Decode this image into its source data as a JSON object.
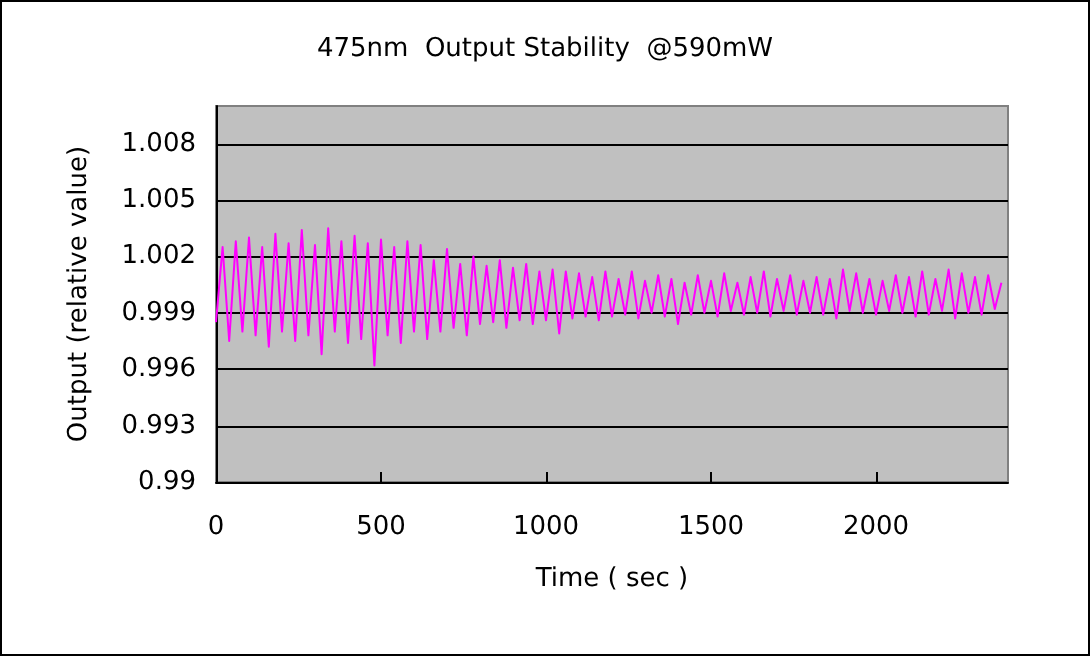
{
  "chart_data": {
    "type": "line",
    "title": "475nm  Output Stability  @590mW",
    "xlabel": "Time ( sec )",
    "ylabel": "Output (relative value)",
    "xlim": [
      0,
      2400
    ],
    "xticks": [
      0,
      500,
      1000,
      1500,
      2000
    ],
    "ylim": [
      0.99,
      1.01
    ],
    "yticks": [
      0.99,
      0.993,
      0.996,
      0.999,
      1.002,
      1.005,
      1.008
    ],
    "grid": "y",
    "marker": "none",
    "line_style": "solid",
    "x": [
      0,
      20,
      40,
      60,
      80,
      100,
      120,
      140,
      160,
      180,
      200,
      220,
      240,
      260,
      280,
      300,
      320,
      340,
      360,
      380,
      400,
      420,
      440,
      460,
      480,
      500,
      520,
      540,
      560,
      580,
      600,
      620,
      640,
      660,
      680,
      700,
      720,
      740,
      760,
      780,
      800,
      820,
      840,
      860,
      880,
      900,
      920,
      940,
      960,
      980,
      1000,
      1020,
      1040,
      1060,
      1080,
      1100,
      1120,
      1140,
      1160,
      1180,
      1200,
      1220,
      1240,
      1260,
      1280,
      1300,
      1320,
      1340,
      1360,
      1380,
      1400,
      1420,
      1440,
      1460,
      1480,
      1500,
      1520,
      1540,
      1560,
      1580,
      1600,
      1620,
      1640,
      1660,
      1680,
      1700,
      1720,
      1740,
      1760,
      1780,
      1800,
      1820,
      1840,
      1860,
      1880,
      1900,
      1920,
      1940,
      1960,
      1980,
      2000,
      2020,
      2040,
      2060,
      2080,
      2100,
      2120,
      2140,
      2160,
      2180,
      2200,
      2220,
      2240,
      2260,
      2280,
      2300,
      2320,
      2340,
      2360,
      2380
    ],
    "series": [
      {
        "color": "#ff00ff",
        "values": [
          0.9985,
          1.0025,
          0.9975,
          1.0028,
          0.998,
          1.003,
          0.9978,
          1.0025,
          0.9972,
          1.0032,
          0.998,
          1.0027,
          0.9975,
          1.0034,
          0.9978,
          1.0026,
          0.9968,
          1.0035,
          0.998,
          1.0028,
          0.9974,
          1.0031,
          0.9976,
          1.0027,
          0.9962,
          1.0029,
          0.9978,
          1.0025,
          0.9974,
          1.0028,
          0.998,
          1.0026,
          0.9976,
          1.0018,
          0.998,
          1.0024,
          0.9982,
          1.0016,
          0.9978,
          1.002,
          0.9984,
          1.0015,
          0.9985,
          1.0018,
          0.9982,
          1.0014,
          0.9986,
          1.0016,
          0.9984,
          1.0012,
          0.9986,
          1.0013,
          0.9979,
          1.0012,
          0.9987,
          1.0011,
          0.9988,
          1.0009,
          0.9986,
          1.0012,
          0.9988,
          1.0008,
          0.9989,
          1.0012,
          0.9987,
          1.0007,
          0.999,
          1.001,
          0.9988,
          1.0008,
          0.9984,
          1.0006,
          0.9989,
          1.001,
          0.999,
          1.0007,
          0.9988,
          1.0011,
          0.9991,
          1.0006,
          0.9989,
          1.0009,
          0.999,
          1.0012,
          0.9988,
          1.0008,
          0.9991,
          1.001,
          0.9989,
          1.0007,
          0.999,
          1.0009,
          0.9989,
          1.0008,
          0.9987,
          1.0013,
          0.9991,
          1.0011,
          0.999,
          1.0008,
          0.9989,
          1.0007,
          0.9991,
          1.001,
          0.999,
          1.0009,
          0.9988,
          1.0012,
          0.9989,
          1.0008,
          0.9991,
          1.0013,
          0.9987,
          1.0011,
          0.999,
          1.0009,
          0.9989,
          1.001,
          0.9992,
          1.0006
        ]
      }
    ]
  }
}
